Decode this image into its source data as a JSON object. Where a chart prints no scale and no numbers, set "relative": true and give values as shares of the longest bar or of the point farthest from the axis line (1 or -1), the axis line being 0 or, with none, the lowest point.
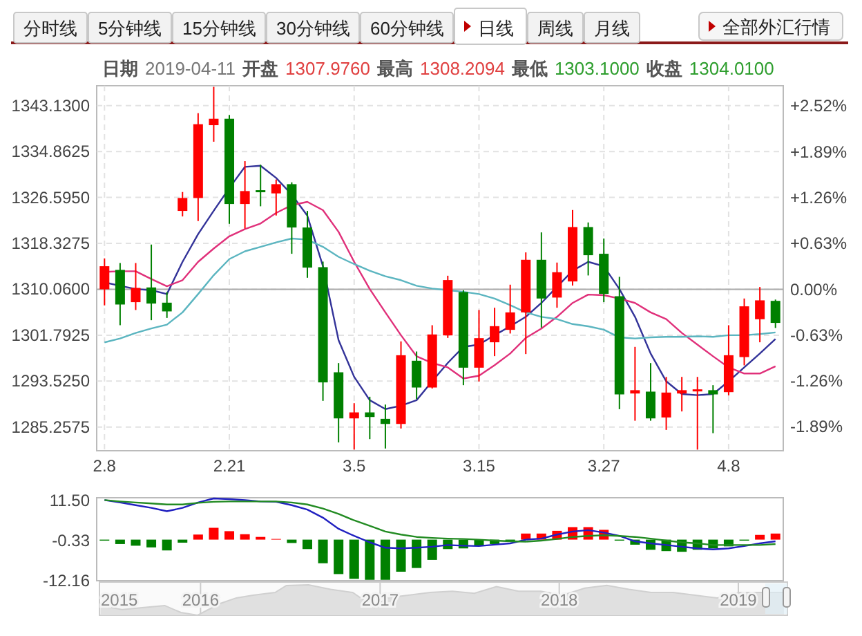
{
  "chart_data": [
    {
      "type": "other",
      "annotations": [
        "分时线",
        "5分钟线",
        "15分钟线",
        "30分钟线",
        "60分钟线",
        "日线",
        "周线",
        "月线",
        "全部外汇行情"
      ]
    },
    {
      "type": "candlestick",
      "subtitle": "日期 2019-04-11 开盘 1307.9760 最高 1308.2094 最低 1303.1000 收盘 1304.0100",
      "categories": [
        "2.8",
        null,
        null,
        null,
        null,
        null,
        null,
        null,
        "2.21",
        null,
        null,
        null,
        null,
        null,
        null,
        null,
        "3.5",
        null,
        null,
        null,
        null,
        null,
        null,
        null,
        "3.15",
        null,
        null,
        null,
        null,
        null,
        null,
        null,
        "3.27",
        null,
        null,
        null,
        null,
        null,
        null,
        null,
        "4.8",
        null,
        null,
        null
      ],
      "ohlc": [
        [
          1310.06,
          1315.62,
          1307.16,
          1314.21
        ],
        [
          1313.55,
          1314.79,
          1303.59,
          1307.32
        ],
        [
          1307.74,
          1314.79,
          1306.33,
          1310.31
        ],
        [
          1310.39,
          1318.11,
          1304.5,
          1307.49
        ],
        [
          1307.65,
          1309.56,
          1304.91,
          1306.08
        ],
        [
          1324.17,
          1327.57,
          1323.17,
          1326.49
        ],
        [
          1326.49,
          1341.76,
          1322.34,
          1339.77
        ],
        [
          1339.6,
          1346.5,
          1336.62,
          1340.76
        ],
        [
          1340.76,
          1341.43,
          1321.84,
          1325.41
        ],
        [
          1325.41,
          1333.13,
          1321.0,
          1327.74
        ],
        [
          1327.9,
          1332.47,
          1325.0,
          1327.57
        ],
        [
          1327.32,
          1329.81,
          1323.34,
          1328.98
        ],
        [
          1328.98,
          1329.31,
          1316.45,
          1321.18
        ],
        [
          1321.18,
          1324.17,
          1312.13,
          1313.96
        ],
        [
          1314.04,
          1315.04,
          1289.98,
          1293.3
        ],
        [
          1295.12,
          1296.78,
          1282.5,
          1286.82
        ],
        [
          1286.82,
          1289.56,
          1281.2,
          1287.9
        ],
        [
          1287.9,
          1290.72,
          1283.09,
          1287.07
        ],
        [
          1286.74,
          1289.31,
          1281.4,
          1285.82
        ],
        [
          1285.82,
          1300.68,
          1285.0,
          1298.19
        ],
        [
          1297.2,
          1298.86,
          1290.3,
          1292.38
        ],
        [
          1292.38,
          1303.59,
          1292.2,
          1301.93
        ],
        [
          1301.76,
          1312.5,
          1301.3,
          1311.72
        ],
        [
          1309.56,
          1309.89,
          1292.8,
          1295.95
        ],
        [
          1295.95,
          1306.33,
          1293.46,
          1301.26
        ],
        [
          1300.52,
          1306.74,
          1298.03,
          1303.42
        ],
        [
          1302.76,
          1310.89,
          1302.1,
          1305.9
        ],
        [
          1305.9,
          1316.7,
          1298.4,
          1315.37
        ],
        [
          1315.37,
          1320.3,
          1303.17,
          1308.4
        ],
        [
          1308.57,
          1314.87,
          1306.74,
          1313.13
        ],
        [
          1311.47,
          1324.33,
          1310.72,
          1321.26
        ],
        [
          1321.26,
          1322.09,
          1312.55,
          1316.2
        ],
        [
          1316.45,
          1319.19,
          1307.74,
          1309.23
        ],
        [
          1308.81,
          1312.3,
          1288.48,
          1291.14
        ],
        [
          1291.3,
          1299.69,
          1286.4,
          1291.9
        ],
        [
          1291.64,
          1296.78,
          1286.4,
          1286.82
        ],
        [
          1286.99,
          1294.29,
          1284.75,
          1291.47
        ],
        [
          1291.3,
          1294.29,
          1288.07,
          1291.9
        ],
        [
          1291.72,
          1294.29,
          1281.2,
          1292.05
        ],
        [
          1291.9,
          1292.8,
          1284.16,
          1291.14
        ],
        [
          1291.55,
          1303.59,
          1290.97,
          1298.19
        ],
        [
          1297.86,
          1308.4,
          1296.37,
          1306.99
        ],
        [
          1304.67,
          1310.47,
          1300.52,
          1308.07
        ],
        [
          1307.976,
          1308.2094,
          1303.1,
          1304.01
        ]
      ],
      "colors": [
        "#ff0000",
        "#008000",
        "#ff0000",
        "#008000",
        "#008000",
        "#ff0000",
        "#ff0000",
        "#ff0000",
        "#008000",
        "#ff0000",
        "#008000",
        "#ff0000",
        "#008000",
        "#008000",
        "#008000",
        "#008000",
        "#ff0000",
        "#008000",
        "#008000",
        "#ff0000",
        "#008000",
        "#ff0000",
        "#ff0000",
        "#008000",
        "#ff0000",
        "#ff0000",
        "#ff0000",
        "#ff0000",
        "#008000",
        "#ff0000",
        "#ff0000",
        "#008000",
        "#008000",
        "#008000",
        "#ff0000",
        "#008000",
        "#ff0000",
        "#ff0000",
        "#ff0000",
        "#008000",
        "#ff0000",
        "#ff0000",
        "#ff0000",
        "#008000"
      ],
      "series": [
        {
          "type": "line",
          "color": "#333399",
          "values": [
            1311.3,
            1310.7,
            1310.1,
            1309.9,
            1309.2,
            1315.0,
            1320.0,
            1324.2,
            1328.3,
            1332.1,
            1332.3,
            1330.1,
            1327.1,
            1323.3,
            1314.2,
            1300.9,
            1294.3,
            1290.1,
            1288.5,
            1289.1,
            1290.1,
            1293.5,
            1296.8,
            1299.7,
            1300.1,
            1301.8,
            1303.4,
            1305.1,
            1307.6,
            1310.5,
            1313.4,
            1315.0,
            1314.2,
            1310.1,
            1305.1,
            1298.5,
            1293.5,
            1291.2,
            1291.0,
            1291.2,
            1293.5,
            1296.0,
            1298.5,
            1301.1
          ]
        },
        {
          "type": "line",
          "color": "#e0307a",
          "values": [
            1313.2,
            1313.3,
            1313.3,
            1311.9,
            1310.6,
            1311.7,
            1315.0,
            1317.4,
            1319.6,
            1320.9,
            1321.9,
            1323.8,
            1325.2,
            1325.8,
            1324.3,
            1320.4,
            1315.0,
            1310.1,
            1305.9,
            1301.8,
            1298.0,
            1296.8,
            1296.0,
            1294.0,
            1294.5,
            1296.4,
            1298.5,
            1301.3,
            1303.0,
            1305.1,
            1307.6,
            1309.1,
            1309.0,
            1308.4,
            1307.6,
            1305.9,
            1304.7,
            1302.2,
            1300.1,
            1298.0,
            1296.0,
            1294.9,
            1294.9,
            1296.2
          ]
        },
        {
          "type": "line",
          "color": "#5bb5c0",
          "values": [
            1300.5,
            1301.2,
            1302.2,
            1303.0,
            1303.7,
            1305.9,
            1309.2,
            1312.6,
            1315.5,
            1316.9,
            1317.7,
            1318.5,
            1319.2,
            1319.0,
            1317.7,
            1315.9,
            1314.6,
            1313.4,
            1312.4,
            1311.7,
            1310.7,
            1310.2,
            1309.9,
            1309.6,
            1309.2,
            1308.4,
            1307.2,
            1305.9,
            1305.1,
            1304.7,
            1303.8,
            1303.4,
            1302.8,
            1301.4,
            1301.2,
            1301.4,
            1301.5,
            1301.5,
            1301.6,
            1301.5,
            1301.8,
            1301.8,
            1302.0,
            1302.3
          ]
        }
      ],
      "ylim": [
        1281.0,
        1346.7
      ],
      "yticks": [
        {
          "value": 1285.2575,
          "label": "1285.2575"
        },
        {
          "value": 1293.525,
          "label": "1293.5250"
        },
        {
          "value": 1301.7925,
          "label": "1301.7925"
        },
        {
          "value": 1310.06,
          "label": "1310.0600"
        },
        {
          "value": 1318.3275,
          "label": "1318.3275"
        },
        {
          "value": 1326.595,
          "label": "1326.5950"
        },
        {
          "value": 1334.8625,
          "label": "1334.8625"
        },
        {
          "value": 1343.13,
          "label": "1343.1300"
        }
      ],
      "y2lim": [
        -2.22,
        2.8
      ],
      "y2ticks": [
        {
          "value": -1.89,
          "label": "-1.89%"
        },
        {
          "value": -1.26,
          "label": "-1.26%"
        },
        {
          "value": -0.63,
          "label": "-0.63%"
        },
        {
          "value": 0,
          "label": "0.00%"
        },
        {
          "value": 0.63,
          "label": "+0.63%"
        },
        {
          "value": 1.26,
          "label": "+1.26%"
        },
        {
          "value": 1.89,
          "label": "+1.89%"
        },
        {
          "value": 2.52,
          "label": "+2.52%"
        }
      ],
      "ref_lines": [
        {
          "axis": "y",
          "value": 1310.06,
          "color": "#aaaaaa"
        }
      ],
      "grid": true
    },
    {
      "type": "bar",
      "categories": [
        null,
        null,
        null,
        null,
        null,
        null,
        null,
        null,
        null,
        null,
        null,
        null,
        null,
        null,
        null,
        null,
        null,
        null,
        null,
        null,
        null,
        null,
        null,
        null,
        null,
        null,
        null,
        null,
        null,
        null,
        null,
        null,
        null,
        null,
        null,
        null,
        null,
        null,
        null,
        null,
        null,
        null,
        null,
        null
      ],
      "series": [
        {
          "type": "bar",
          "values": [
            -0.3,
            -1.3,
            -1.8,
            -2.3,
            -3.2,
            -0.9,
            1.5,
            3.5,
            2.5,
            1.6,
            0.8,
            0.2,
            -1.0,
            -2.8,
            -7.0,
            -10.2,
            -11.6,
            -11.9,
            -11.9,
            -9.5,
            -8.4,
            -6.0,
            -2.8,
            -2.6,
            -1.8,
            -1.3,
            -0.3,
            1.8,
            1.8,
            2.6,
            3.7,
            3.7,
            2.9,
            -0.3,
            -1.5,
            -3.0,
            -3.4,
            -3.6,
            -3.0,
            -2.6,
            -2.0,
            -0.3,
            1.4,
            1.8
          ],
          "colors": [
            "#008000",
            "#008000",
            "#008000",
            "#008000",
            "#008000",
            "#008000",
            "#ff0000",
            "#ff0000",
            "#ff0000",
            "#ff0000",
            "#ff0000",
            "#ff0000",
            "#008000",
            "#008000",
            "#008000",
            "#008000",
            "#008000",
            "#008000",
            "#008000",
            "#008000",
            "#008000",
            "#008000",
            "#008000",
            "#008000",
            "#008000",
            "#008000",
            "#008000",
            "#ff0000",
            "#ff0000",
            "#ff0000",
            "#ff0000",
            "#ff0000",
            "#ff0000",
            "#008000",
            "#008000",
            "#008000",
            "#008000",
            "#008000",
            "#008000",
            "#008000",
            "#008000",
            "#008000",
            "#ff0000",
            "#ff0000"
          ]
        },
        {
          "type": "line",
          "color": "#2020c0",
          "values": [
            11.7,
            11.0,
            10.2,
            9.4,
            8.4,
            9.4,
            11.0,
            12.2,
            12.0,
            11.7,
            11.3,
            11.2,
            10.2,
            8.9,
            6.5,
            3.2,
            1.1,
            -0.8,
            -2.4,
            -2.6,
            -2.4,
            -2.1,
            -1.6,
            -1.8,
            -1.9,
            -1.5,
            -1.1,
            0.0,
            0.3,
            1.5,
            2.4,
            2.8,
            2.1,
            1.1,
            -0.5,
            -1.1,
            -1.6,
            -2.1,
            -2.6,
            -2.9,
            -2.6,
            -1.9,
            -1.1,
            -0.5
          ]
        },
        {
          "type": "line",
          "color": "#228b22",
          "values": [
            11.7,
            11.3,
            11.0,
            10.7,
            10.4,
            10.4,
            10.9,
            11.2,
            11.3,
            11.3,
            11.3,
            11.3,
            11.0,
            10.4,
            9.2,
            7.6,
            5.7,
            4.1,
            2.4,
            1.5,
            0.8,
            0.5,
            0.3,
            0.2,
            0.0,
            -0.3,
            -0.5,
            -0.6,
            -0.3,
            0.2,
            0.8,
            1.1,
            1.3,
            1.1,
            0.8,
            0.3,
            -0.3,
            -0.8,
            -1.1,
            -1.6,
            -1.6,
            -1.6,
            -1.6,
            -1.3
          ]
        }
      ],
      "ylim": [
        -12.16,
        12.4
      ],
      "yticks": [
        {
          "value": -12.16,
          "label": "-12.16"
        },
        {
          "value": -0.33,
          "label": "-0.33"
        },
        {
          "value": 11.5,
          "label": "11.50"
        }
      ],
      "tick_labels": "y"
    },
    {
      "type": "area",
      "relative": true,
      "color": "#e0e0e0",
      "x": [
        "2015-06-11",
        "2015-07-25",
        "2015-09-04",
        "2015-10-20",
        "2015-11-22",
        "2015-12-26",
        "2016-02-09",
        "2016-03-14",
        "2016-04-17",
        "2016-06-01",
        "2016-06-24",
        "2016-08-08",
        "2016-09-22",
        "2016-11-06",
        "2016-12-21",
        "2017-01-13",
        "2017-02-27",
        "2017-04-13",
        "2017-05-28",
        "2017-07-12",
        "2017-08-26",
        "2017-10-10",
        "2017-11-24",
        "2018-01-08",
        "2018-02-22",
        "2018-04-08",
        "2018-05-23",
        "2018-07-07",
        "2018-08-21",
        "2018-10-05",
        "2018-11-19",
        "2019-01-04",
        "2019-02-06",
        "2019-04-04"
      ],
      "values": [
        0.32,
        0.19,
        0.25,
        0.32,
        0.09,
        0,
        0.38,
        0.57,
        0.66,
        0.75,
        0.98,
        1,
        0.85,
        0.75,
        0.25,
        0.57,
        0.66,
        0.75,
        0.79,
        0.72,
        0.94,
        0.79,
        0.79,
        0.66,
        0.89,
        0.98,
        0.85,
        0.75,
        0.75,
        0.66,
        0.57,
        0.75,
        0.75,
        0.75
      ],
      "xlim": [
        "2015-06-09",
        "2019-04-11"
      ],
      "xticks": [
        {
          "value": "2015-06-09",
          "label": "2015"
        },
        {
          "value": "2016-01-01",
          "label": "2016"
        },
        {
          "value": "2017-01-01",
          "label": "2017"
        },
        {
          "value": "2018-01-01",
          "label": "2018"
        },
        {
          "value": "2019-01-01",
          "label": "2019"
        }
      ],
      "tick_labels": "x",
      "grid": "x"
    }
  ]
}
